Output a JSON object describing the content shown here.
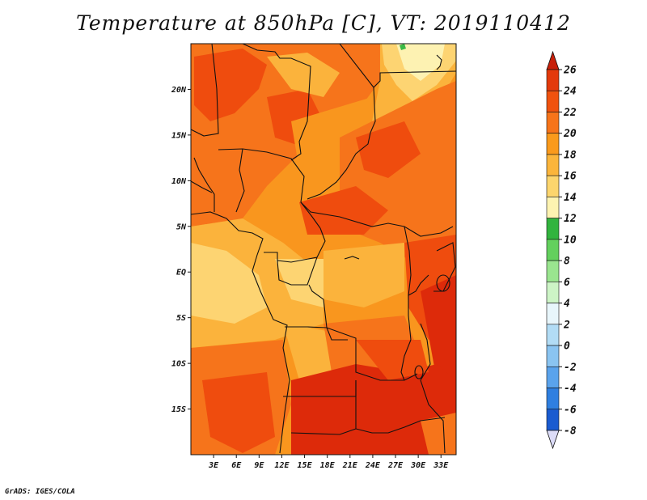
{
  "title": "Temperature at 850hPa [C], VT: 2019110412",
  "credit": "GrADS: IGES/COLA",
  "map": {
    "lon_range": [
      0,
      35
    ],
    "lat_range": [
      -20,
      25
    ],
    "lon_ticks": [
      {
        "value": 3,
        "label": "3E"
      },
      {
        "value": 6,
        "label": "6E"
      },
      {
        "value": 9,
        "label": "9E"
      },
      {
        "value": 12,
        "label": "12E"
      },
      {
        "value": 15,
        "label": "15E"
      },
      {
        "value": 18,
        "label": "18E"
      },
      {
        "value": 21,
        "label": "21E"
      },
      {
        "value": 24,
        "label": "24E"
      },
      {
        "value": 27,
        "label": "27E"
      },
      {
        "value": 30,
        "label": "30E"
      },
      {
        "value": 33,
        "label": "33E"
      }
    ],
    "lat_ticks": [
      {
        "value": 20,
        "label": "20N"
      },
      {
        "value": 15,
        "label": "15N"
      },
      {
        "value": 10,
        "label": "10N"
      },
      {
        "value": 5,
        "label": "5N"
      },
      {
        "value": 0,
        "label": "EQ"
      },
      {
        "value": -5,
        "label": "5S"
      },
      {
        "value": -10,
        "label": "10S"
      },
      {
        "value": -15,
        "label": "15S"
      }
    ],
    "field": "temperature_850hPa",
    "units": "C"
  },
  "colorbar": {
    "levels": [
      "26",
      "24",
      "22",
      "20",
      "18",
      "16",
      "14",
      "12",
      "10",
      "8",
      "6",
      "4",
      "2",
      "0",
      "-2",
      "-4",
      "-6",
      "-8"
    ],
    "colors": [
      "#e33a0c",
      "#f0520e",
      "#f7741a",
      "#fa9a1c",
      "#fbb53b",
      "#fcd56d",
      "#fdf3b1",
      "#32b43e",
      "#63d05d",
      "#9ae58f",
      "#cdf4c6",
      "#e8f6fb",
      "#b2dcf5",
      "#8ac4f1",
      "#5aa3ec",
      "#2f7fe0",
      "#1a5bd0",
      "#0e3aa8",
      "#061b6e"
    ],
    "top_arrow_color": "#c8200a",
    "bottom_arrow_color": "#dcdcf8"
  },
  "palette": {
    "t26": "#dd2a0a",
    "t24": "#ef4c0e",
    "t22": "#f6741b",
    "t20": "#f9961e",
    "t18": "#fbb33c",
    "t16": "#fdd472",
    "t14": "#fdf2b2",
    "t12": "#3bb946"
  }
}
